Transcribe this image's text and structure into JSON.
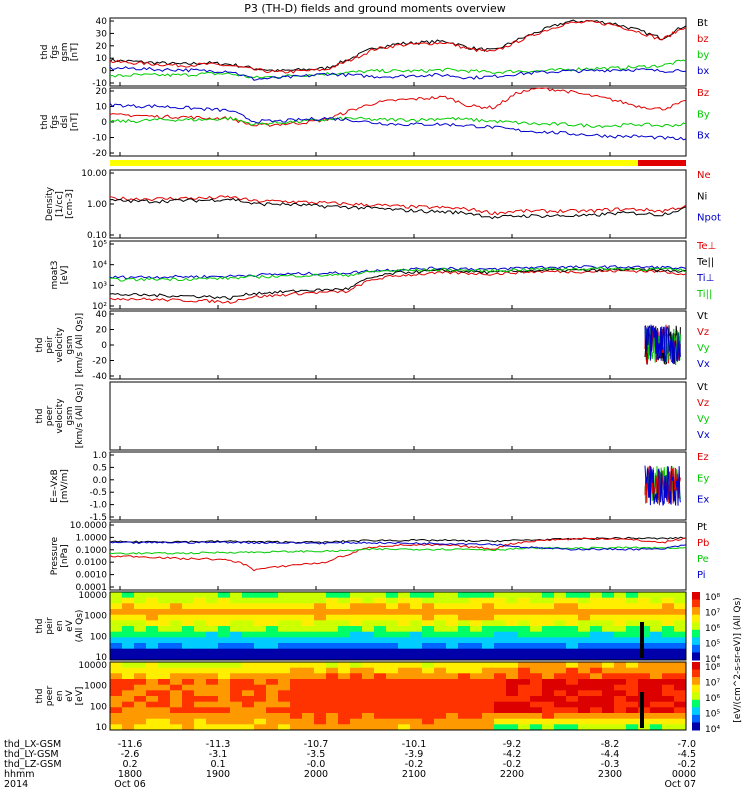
{
  "title": "P3 (TH-D) fields and ground moments overview",
  "colors": {
    "black": "#000000",
    "red": "#e00000",
    "green": "#00cc00",
    "blue": "#0000cc",
    "yellow": "#ffff00"
  },
  "chart_data": [
    {
      "type": "line",
      "ylabel": [
        "thd",
        "fgs",
        "gsm",
        "[nT]"
      ],
      "yticks": [
        "40",
        "30",
        "20",
        "10",
        "0",
        "-10"
      ],
      "ylim": [
        -10,
        40
      ],
      "series": [
        {
          "name": "Bt",
          "color": "black",
          "values": [
            9,
            8,
            7,
            6,
            7,
            6,
            3,
            1,
            2,
            3,
            10,
            18,
            21,
            22,
            23,
            18,
            16,
            24,
            31,
            37,
            38,
            36,
            31,
            25,
            35
          ]
        },
        {
          "name": "bz",
          "color": "red",
          "values": [
            8,
            7,
            6,
            5,
            6,
            5,
            2,
            0,
            1,
            2,
            9,
            17,
            20,
            21,
            22,
            17,
            15,
            23,
            30,
            36,
            37,
            35,
            30,
            24,
            34
          ]
        },
        {
          "name": "by",
          "color": "green",
          "values": [
            -3,
            -2,
            -2,
            -2,
            -1,
            -1,
            -4,
            -3,
            -2,
            -1,
            0,
            1,
            1,
            1,
            2,
            1,
            0,
            1,
            1,
            2,
            3,
            3,
            4,
            5,
            9
          ]
        },
        {
          "name": "bx",
          "color": "blue",
          "values": [
            3,
            3,
            2,
            2,
            1,
            1,
            -5,
            -4,
            -3,
            -1,
            -2,
            -3,
            -3,
            -2,
            -2,
            -4,
            -3,
            -1,
            0,
            1,
            1,
            2,
            2,
            1,
            2
          ]
        }
      ]
    },
    {
      "type": "line",
      "ylabel": [
        "thd",
        "fgs",
        "dsl",
        "[nT]"
      ],
      "yticks": [
        "20",
        "10",
        "0",
        "-10",
        "-20"
      ],
      "ylim": [
        -25,
        20
      ],
      "series": [
        {
          "name": "Bz",
          "color": "red",
          "values": [
            2,
            2,
            1,
            1,
            0,
            0,
            -5,
            -4,
            -3,
            -1,
            5,
            10,
            12,
            13,
            14,
            8,
            7,
            17,
            20,
            18,
            15,
            12,
            8,
            6,
            11
          ]
        },
        {
          "name": "By",
          "color": "green",
          "values": [
            -2,
            -2,
            -1,
            -1,
            -1,
            0,
            -4,
            -3,
            -2,
            -1,
            0,
            -1,
            -1,
            -1,
            0,
            -1,
            -2,
            -3,
            -4,
            -4,
            -5,
            -5,
            -4,
            -5,
            -4
          ]
        },
        {
          "name": "Bx",
          "color": "blue",
          "values": [
            9,
            8,
            8,
            7,
            6,
            5,
            -2,
            -2,
            -1,
            0,
            -1,
            -3,
            -4,
            -4,
            -4,
            -5,
            -6,
            -8,
            -9,
            -10,
            -11,
            -12,
            -12,
            -13,
            -14
          ]
        }
      ]
    },
    {
      "type": "line",
      "ylabel": [
        "Density",
        "[1/cc]",
        "[cm-3]"
      ],
      "log": true,
      "yticks": [
        "10.00",
        "1.00",
        "0.10"
      ],
      "ylim": [
        0.03,
        10
      ],
      "series": [
        {
          "name": "Ne",
          "color": "red",
          "values": [
            0.9,
            0.85,
            0.85,
            0.9,
            0.9,
            1.0,
            0.7,
            0.7,
            0.65,
            0.6,
            0.55,
            0.5,
            0.45,
            0.42,
            0.4,
            0.35,
            0.25,
            0.3,
            0.3,
            0.3,
            0.3,
            0.35,
            0.35,
            0.3,
            0.45
          ]
        },
        {
          "name": "Ni",
          "color": "black",
          "values": [
            0.75,
            0.7,
            0.7,
            0.75,
            0.75,
            0.85,
            0.55,
            0.55,
            0.5,
            0.45,
            0.42,
            0.38,
            0.33,
            0.3,
            0.28,
            0.25,
            0.17,
            0.2,
            0.2,
            0.2,
            0.2,
            0.25,
            0.25,
            0.22,
            0.38
          ]
        },
        {
          "name": "Npot",
          "color": "blue",
          "values": []
        }
      ]
    },
    {
      "type": "line",
      "ylabel": [
        "moat3",
        "[eV]"
      ],
      "log": true,
      "yticks": [
        "10⁵",
        "10⁴",
        "10³",
        "10²"
      ],
      "ylim": [
        100,
        100000
      ],
      "series": [
        {
          "name": "Te⊥",
          "color": "red",
          "values": [
            300,
            280,
            260,
            240,
            230,
            200,
            350,
            400,
            500,
            550,
            600,
            2000,
            3000,
            3500,
            4000,
            3800,
            3500,
            4200,
            4500,
            4500,
            4500,
            4800,
            4800,
            4500,
            3500
          ]
        },
        {
          "name": "Te||",
          "color": "black",
          "values": [
            450,
            420,
            400,
            380,
            360,
            300,
            500,
            550,
            650,
            700,
            800,
            2500,
            4000,
            4500,
            5000,
            4500,
            4000,
            4800,
            5000,
            5200,
            5000,
            5500,
            5500,
            5000,
            4500
          ]
        },
        {
          "name": "Ti⊥",
          "color": "blue",
          "values": [
            2500,
            2600,
            2600,
            2700,
            2700,
            2800,
            3200,
            3400,
            3600,
            3800,
            4000,
            5000,
            5500,
            6000,
            6500,
            6000,
            5500,
            6500,
            7000,
            7000,
            7200,
            7200,
            7000,
            7000,
            6000
          ]
        },
        {
          "name": "Ti||",
          "color": "green",
          "values": [
            2000,
            2000,
            2100,
            2100,
            2200,
            2300,
            2600,
            2800,
            3000,
            3100,
            3200,
            4500,
            5000,
            5200,
            5500,
            5000,
            4800,
            5500,
            5800,
            5800,
            6000,
            6000,
            5800,
            5800,
            5000
          ]
        }
      ]
    },
    {
      "type": "line",
      "ylabel": [
        "thd",
        "peir",
        "velocity",
        "gsm",
        "[km/s (All Qs)]"
      ],
      "yticks": [
        "40",
        "20",
        "0",
        "-20",
        "-40"
      ],
      "ylim": [
        -40,
        40
      ],
      "series": [
        {
          "name": "Vt",
          "color": "black",
          "values": []
        },
        {
          "name": "Vz",
          "color": "red",
          "values": []
        },
        {
          "name": "Vy",
          "color": "green",
          "values": []
        },
        {
          "name": "Vx",
          "color": "blue",
          "values": []
        }
      ]
    },
    {
      "type": "line",
      "ylabel": [
        "thd",
        "peer",
        "velocity",
        "gsm",
        "[km/s (All Qs)]"
      ],
      "yticks": [],
      "series": [
        {
          "name": "Vt",
          "color": "black",
          "values": []
        },
        {
          "name": "Vz",
          "color": "red",
          "values": []
        },
        {
          "name": "Vy",
          "color": "green",
          "values": []
        },
        {
          "name": "Vx",
          "color": "blue",
          "values": []
        }
      ]
    },
    {
      "type": "line",
      "ylabel": [
        "E=-VxB",
        "[mV/m]"
      ],
      "yticks": [
        "1.0",
        "0.5",
        "0.0",
        "-0.5",
        "-1.0",
        "-1.5"
      ],
      "ylim": [
        -1.5,
        1.0
      ],
      "series": [
        {
          "name": "Ez",
          "color": "red",
          "values": []
        },
        {
          "name": "Ey",
          "color": "green",
          "values": []
        },
        {
          "name": "Ex",
          "color": "blue",
          "values": []
        }
      ]
    },
    {
      "type": "line",
      "ylabel": [
        "Pressure",
        "[nPa]"
      ],
      "log": true,
      "yticks": [
        "10.0000",
        "1.0000",
        "0.1000",
        "0.0100",
        "0.0010",
        "0.0001"
      ],
      "ylim": [
        0.0001,
        10
      ],
      "series": [
        {
          "name": "Pt",
          "color": "black",
          "values": [
            0.35,
            0.35,
            0.36,
            0.36,
            0.37,
            0.38,
            0.35,
            0.34,
            0.33,
            0.32,
            0.4,
            0.45,
            0.45,
            0.45,
            0.45,
            0.4,
            0.4,
            0.45,
            0.5,
            0.55,
            0.6,
            0.65,
            0.65,
            0.6,
            0.7
          ]
        },
        {
          "name": "Pb",
          "color": "red",
          "values": [
            0.03,
            0.03,
            0.025,
            0.02,
            0.02,
            0.015,
            0.003,
            0.005,
            0.008,
            0.01,
            0.04,
            0.15,
            0.2,
            0.2,
            0.2,
            0.15,
            0.1,
            0.3,
            0.45,
            0.55,
            0.6,
            0.6,
            0.45,
            0.3,
            0.6
          ]
        },
        {
          "name": "Pe",
          "color": "green",
          "values": [
            0.05,
            0.05,
            0.05,
            0.05,
            0.055,
            0.06,
            0.06,
            0.065,
            0.07,
            0.07,
            0.08,
            0.1,
            0.1,
            0.1,
            0.1,
            0.1,
            0.09,
            0.11,
            0.12,
            0.12,
            0.12,
            0.13,
            0.13,
            0.12,
            0.12
          ]
        },
        {
          "name": "Pi",
          "color": "blue",
          "values": [
            0.3,
            0.3,
            0.31,
            0.31,
            0.32,
            0.33,
            0.3,
            0.3,
            0.29,
            0.28,
            0.3,
            0.3,
            0.28,
            0.27,
            0.26,
            0.25,
            0.23,
            0.15,
            0.12,
            0.1,
            0.1,
            0.1,
            0.1,
            0.1,
            0.2
          ]
        }
      ]
    },
    {
      "type": "heatmap",
      "ylabel": [
        "thd",
        "peir",
        "en",
        "eV",
        "(All Qs)"
      ],
      "log": true,
      "yticks": [
        "10000",
        "1000",
        "100",
        "10"
      ],
      "colorbar_ticks": [
        "10⁸",
        "10⁷",
        "10⁶",
        "10⁵",
        "10⁴"
      ]
    },
    {
      "type": "heatmap",
      "ylabel": [
        "thd",
        "peer",
        "en",
        "eV",
        "[eV]"
      ],
      "log": true,
      "yticks": [
        "10000",
        "1000",
        "100",
        "10"
      ],
      "colorbar_ticks": [
        "10⁸",
        "10⁷",
        "10⁶",
        "10⁵",
        "10⁴"
      ]
    }
  ],
  "colorbar_label": "[eV/(cm^2-s-sr-eV)] (All Qs)",
  "footer": {
    "rows": [
      {
        "label": "thd_LX-GSM",
        "values": [
          "-11.6",
          "-11.3",
          "-10.7",
          "-10.1",
          "-9.2",
          "-8.2",
          "-7.0"
        ]
      },
      {
        "label": "thd_LY-GSM",
        "values": [
          "-2.6",
          "-3.1",
          "-3.5",
          "-3.9",
          "-4.2",
          "-4.4",
          "-4.5"
        ]
      },
      {
        "label": "thd_LZ-GSM",
        "values": [
          "0.2",
          "0.1",
          "-0.0",
          "-0.2",
          "-0.2",
          "-0.3",
          "-0.2"
        ]
      },
      {
        "label": "hhmm",
        "values": [
          "1800",
          "1900",
          "2000",
          "2100",
          "2200",
          "2300",
          "0000"
        ]
      },
      {
        "label": "2014",
        "values": [
          "Oct 06",
          "",
          "",
          "",
          "",
          "",
          "Oct 07"
        ]
      }
    ]
  }
}
